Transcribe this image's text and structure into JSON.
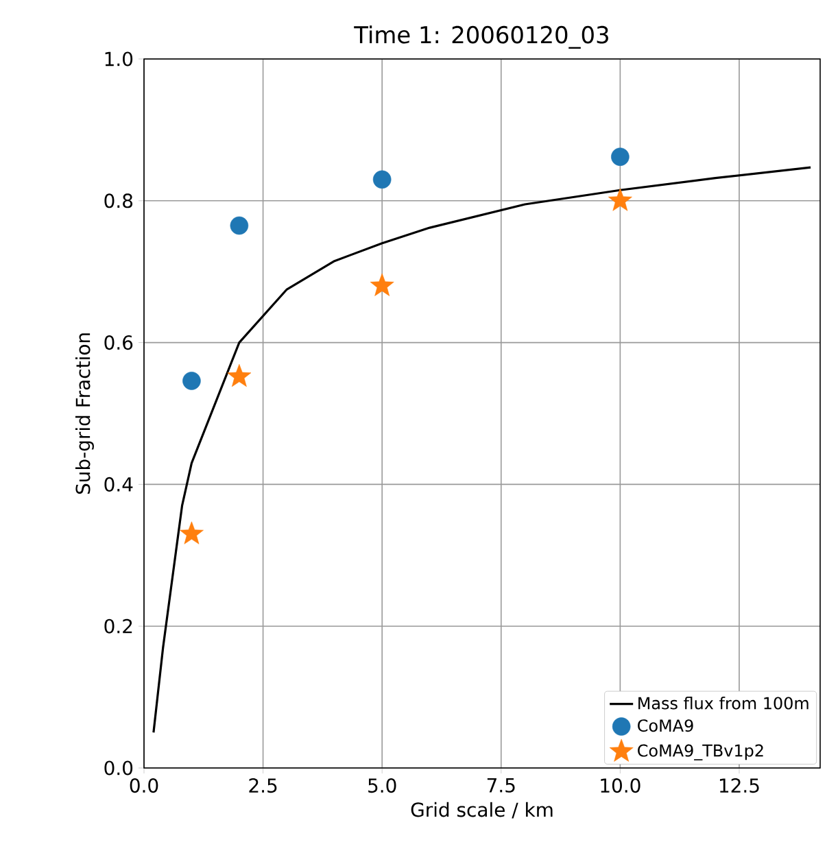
{
  "chart_data": {
    "type": "scatter",
    "title": "Time 1:  20060120_03",
    "xlabel": "Grid scale / km",
    "ylabel": "Sub-grid Fraction",
    "xlim": [
      0,
      14.2
    ],
    "ylim": [
      0,
      1
    ],
    "xticks": [
      {
        "value": 0,
        "label": "0.0"
      },
      {
        "value": 2.5,
        "label": "2.5"
      },
      {
        "value": 5,
        "label": "5.0"
      },
      {
        "value": 7.5,
        "label": "7.5"
      },
      {
        "value": 10,
        "label": "10.0"
      },
      {
        "value": 12.5,
        "label": "12.5"
      }
    ],
    "yticks": [
      {
        "value": 0,
        "label": "0.0"
      },
      {
        "value": 0.2,
        "label": "0.2"
      },
      {
        "value": 0.4,
        "label": "0.4"
      },
      {
        "value": 0.6,
        "label": "0.6"
      },
      {
        "value": 0.8,
        "label": "0.8"
      },
      {
        "value": 1,
        "label": "1.0"
      }
    ],
    "grid": true,
    "legend": "bottom right",
    "series": [
      {
        "name": "Mass flux from 100m",
        "type": "line",
        "color": "#000000",
        "marker": "none",
        "line_style": "solid",
        "x": [
          0.2,
          0.4,
          0.8,
          1,
          2,
          3,
          4,
          5,
          6,
          8,
          10,
          12,
          14
        ],
        "values": [
          0.05,
          0.17,
          0.37,
          0.43,
          0.6,
          0.675,
          0.715,
          0.74,
          0.762,
          0.795,
          0.815,
          0.832,
          0.847
        ]
      },
      {
        "name": "CoMA9",
        "color": "#1f77b4",
        "marker": "circle",
        "x": [
          1,
          2,
          5,
          10
        ],
        "values": [
          0.546,
          0.765,
          0.83,
          0.862
        ]
      },
      {
        "name": "CoMA9_TBv1p2",
        "color": "#ff7f0e",
        "marker": "star",
        "x": [
          1,
          2,
          5,
          10
        ],
        "values": [
          0.33,
          0.552,
          0.68,
          0.8
        ]
      }
    ]
  }
}
